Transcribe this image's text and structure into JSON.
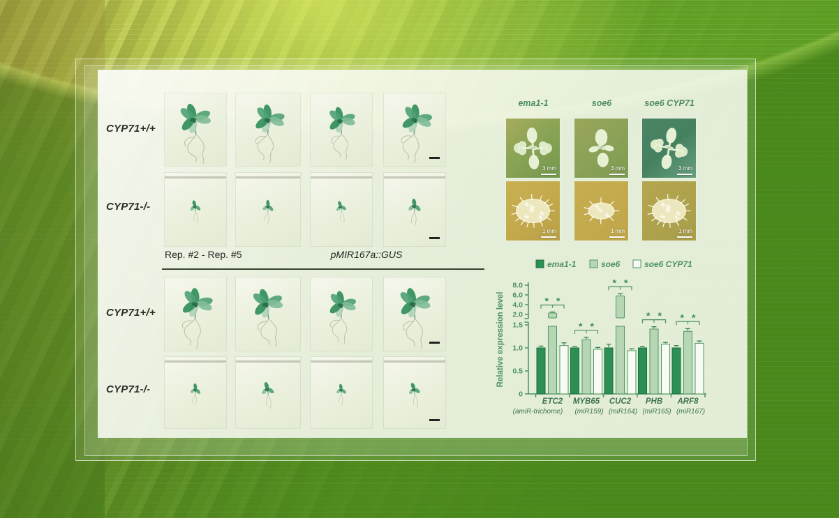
{
  "panel": {
    "gus": {
      "row_labels": [
        "CYP71+/+",
        "CYP71-/-",
        "CYP71+/+",
        "CYP71-/-"
      ],
      "caption_reps": "Rep. #2 - Rep. #5",
      "caption_construct": "pMIR167a::GUS"
    },
    "pheno": {
      "col_headers": [
        "ema1-1",
        "soe6",
        "soe6 CYP71"
      ],
      "scale_labels": [
        "3 mm",
        "1 mm"
      ]
    }
  },
  "chart_data": {
    "type": "bar",
    "title": "",
    "ylabel": "Relative expression level",
    "categories": [
      "ETC2",
      "MYB65",
      "CUC2",
      "PHB",
      "ARF8"
    ],
    "category_sublabels": [
      "(amiR-trichome)",
      "(miR159)",
      "(miR164)",
      "(miR165)",
      "(miR167)"
    ],
    "series": [
      {
        "name": "ema1-1",
        "color": "#2c9055",
        "stroke": "#1e6e3e",
        "values": [
          1.0,
          1.0,
          1.0,
          1.0,
          1.0
        ],
        "errors": [
          0.04,
          0.03,
          0.08,
          0.03,
          0.05
        ]
      },
      {
        "name": "soe6",
        "color": "#b7d6b3",
        "stroke": "#4f9867",
        "values": [
          2.3,
          1.18,
          5.8,
          1.41,
          1.36
        ],
        "errors": [
          0.2,
          0.05,
          0.45,
          0.05,
          0.06
        ]
      },
      {
        "name": "soe6 CYP71",
        "color": "#f8fbf3",
        "stroke": "#4f9867",
        "values": [
          1.05,
          0.97,
          0.94,
          1.08,
          1.1
        ],
        "errors": [
          0.06,
          0.04,
          0.04,
          0.04,
          0.05
        ]
      }
    ],
    "y_ticks_lower_labels": [
      "0",
      "0.5",
      "1.0",
      "1.5"
    ],
    "y_ticks_lower_values": [
      0,
      0.5,
      1.0,
      1.5
    ],
    "y_ticks_upper_labels": [
      "2.0",
      "4.0",
      "6.0",
      "8.0"
    ],
    "y_ticks_upper_values": [
      2,
      4,
      6,
      8
    ],
    "axis_break_between": [
      1.5,
      2.0
    ],
    "ylim": [
      0,
      8.0
    ],
    "grid": false,
    "legend_position": "top",
    "significance_per_group": [
      "**",
      "**",
      "**",
      "**",
      "**"
    ]
  },
  "colors": {
    "axis_green": "#4c9165",
    "gene_label_green": "#3e7450",
    "error_bar_green": "#2f7d4c",
    "star_green": "#3f8f5c",
    "divider_dark": "#39422f"
  }
}
